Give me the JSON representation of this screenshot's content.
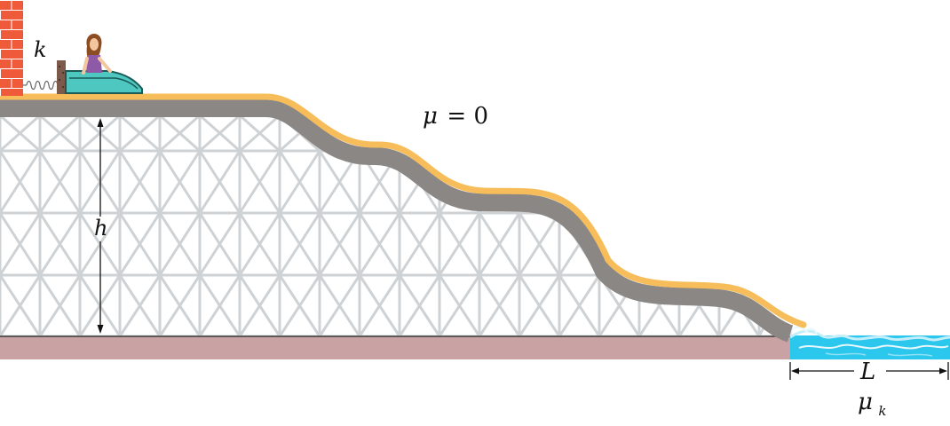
{
  "labels": {
    "spring_constant": "k",
    "height": "h",
    "friction_track_symbol": "μ",
    "friction_track_eq": "= 0",
    "water_length": "L",
    "kinetic_friction_symbol": "μ",
    "kinetic_friction_subscript": "k"
  },
  "colors": {
    "wall": "#ee5a3a",
    "wall_mortar": "#ffffff",
    "track_top": "#f6bd5a",
    "track_body": "#8a8785",
    "scaffold": "#cfd2d4",
    "ground": "#c9a2a3",
    "water": "#2cc7ec",
    "water_light": "#c4eef9",
    "sled": "#4dc7c0",
    "sled_dark": "#1a5a57",
    "rider_shirt": "#8e5aa8",
    "rider_hair": "#8b4e22",
    "skin": "#f4c6a0"
  },
  "icons": {
    "wall": "brick-wall-icon",
    "spring": "spring-icon",
    "sled": "toboggan-icon",
    "rider": "rider-icon",
    "water": "water-pool-icon"
  }
}
